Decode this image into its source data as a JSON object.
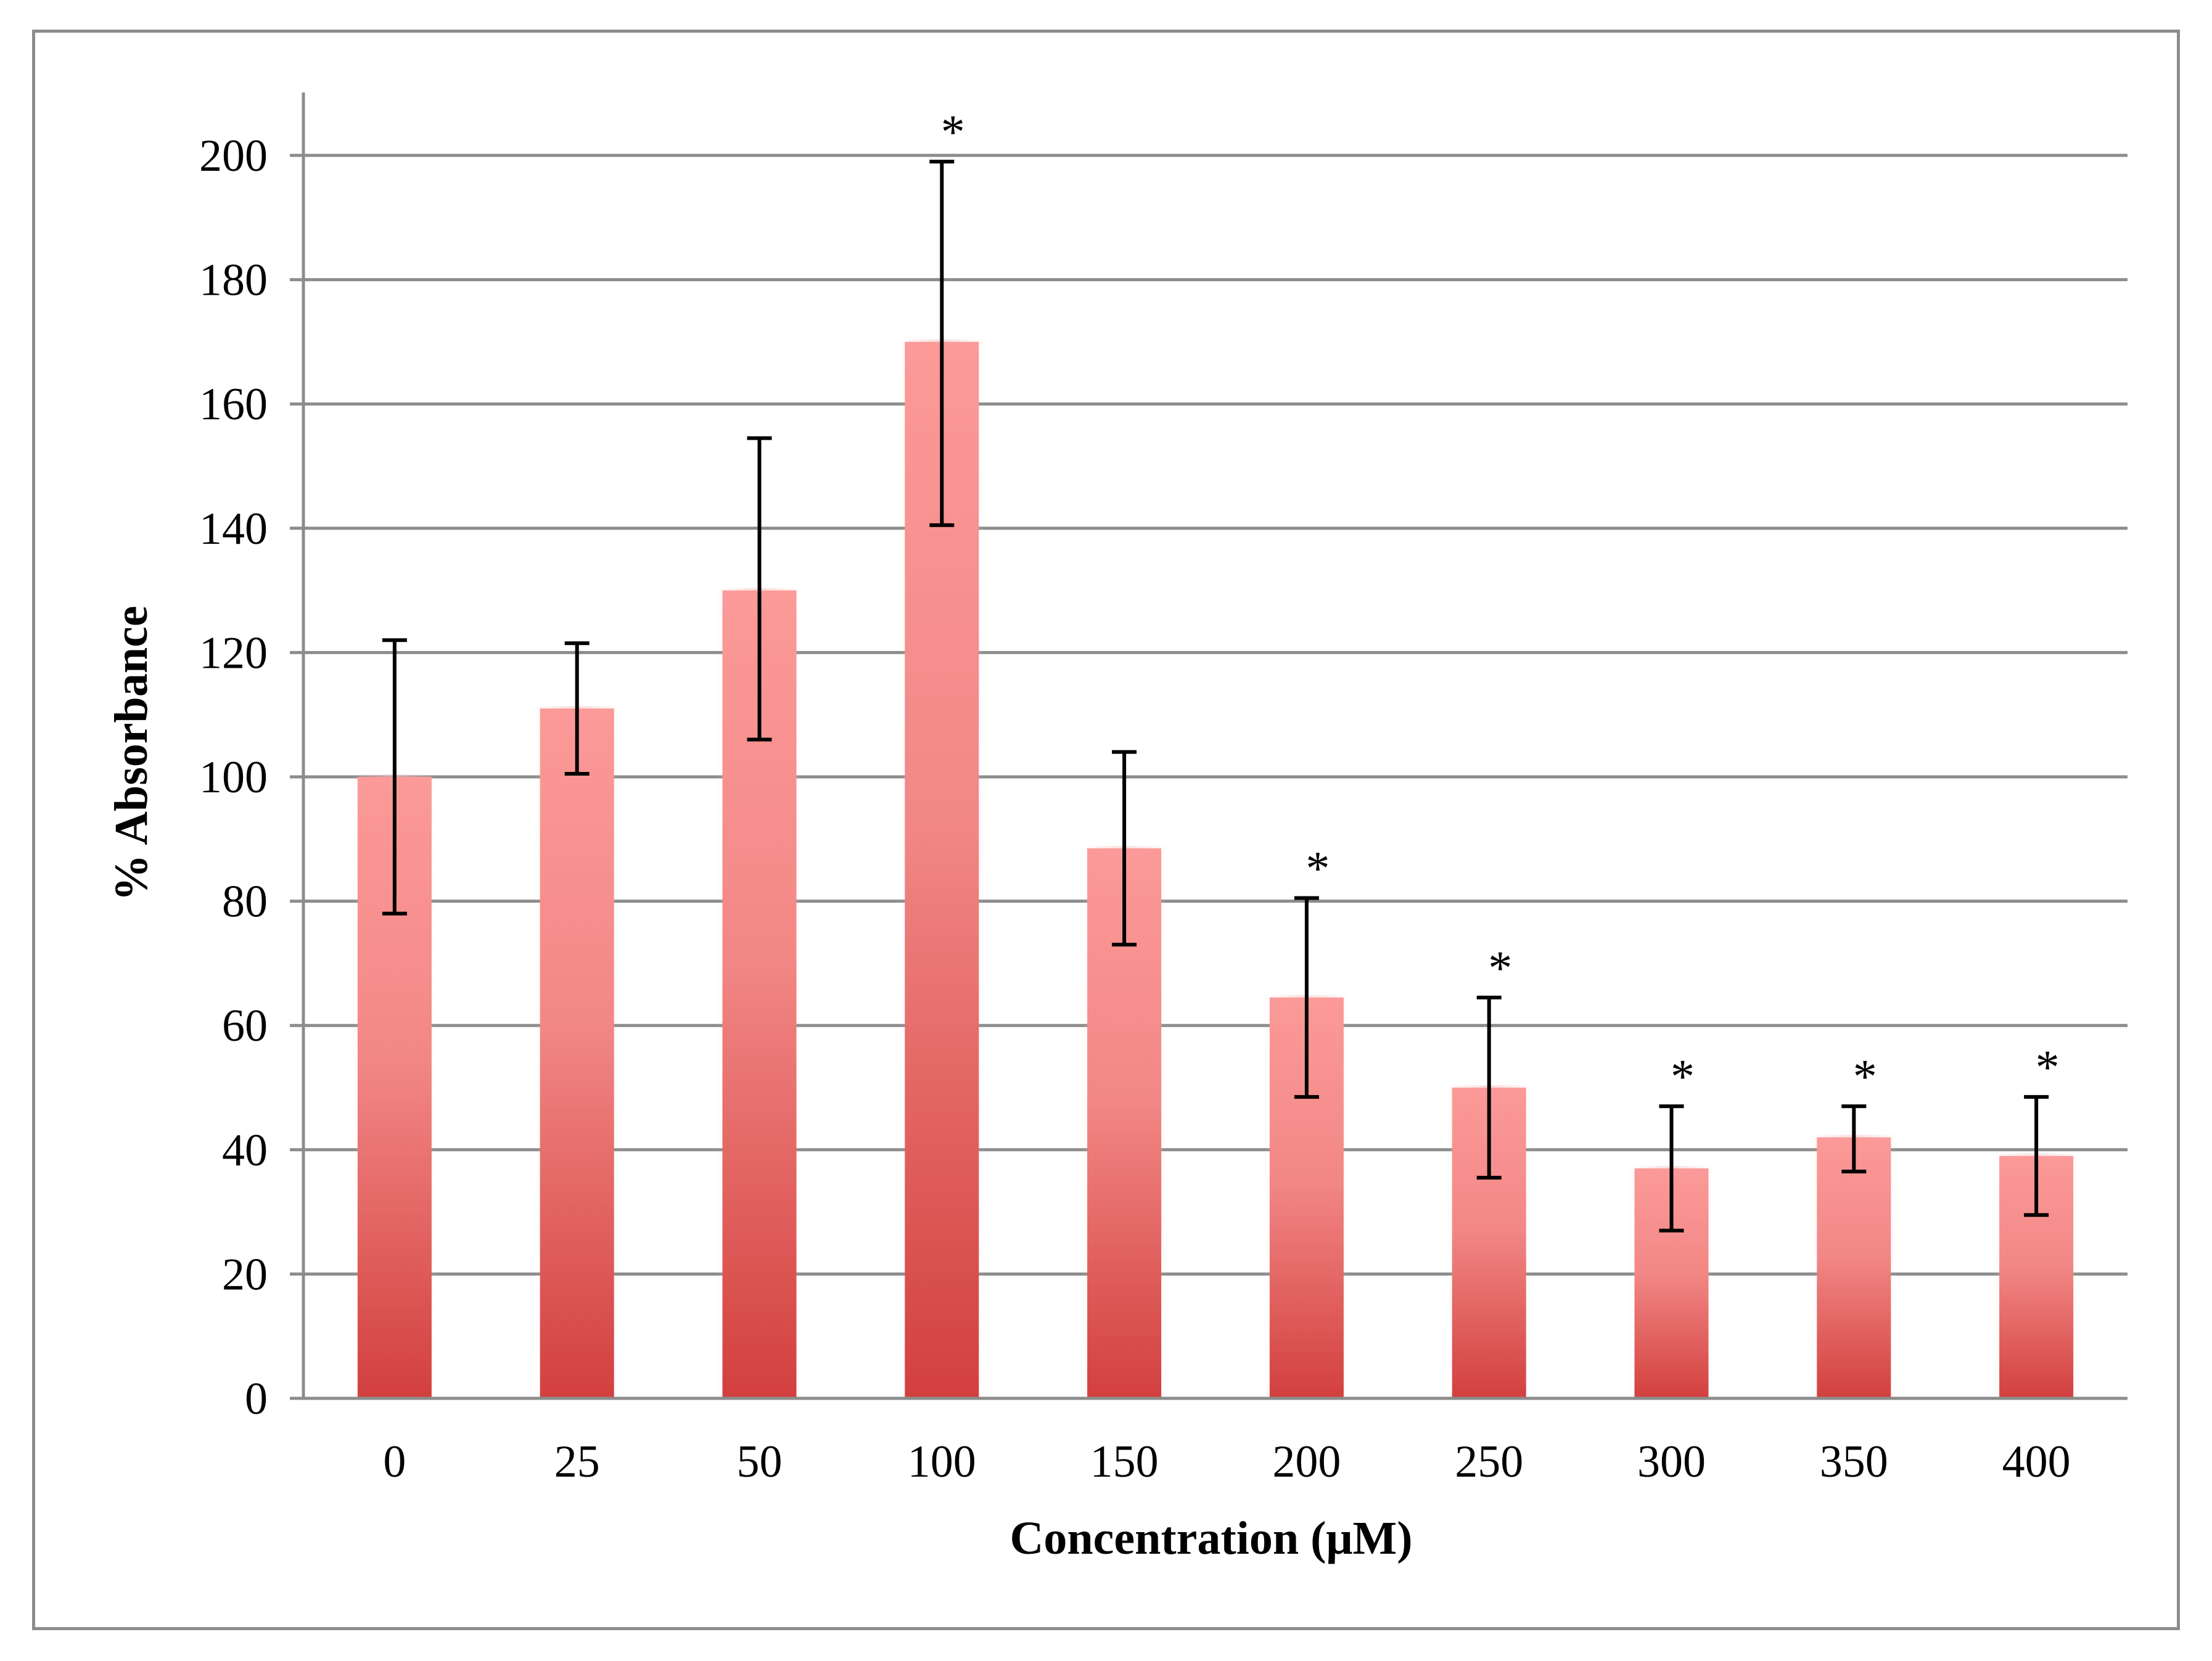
{
  "chart_data": {
    "type": "bar",
    "title": "",
    "xlabel": "Concentration (μM)",
    "ylabel": "% Absorbance",
    "ylim": [
      0,
      200
    ],
    "yticks": [
      0,
      20,
      40,
      60,
      80,
      100,
      120,
      140,
      160,
      180,
      200
    ],
    "grid": true,
    "categories": [
      "0",
      "25",
      "50",
      "100",
      "150",
      "200",
      "250",
      "300",
      "350",
      "400"
    ],
    "series": [
      {
        "name": "% Absorbance",
        "values": [
          100,
          111,
          130,
          170,
          88.5,
          64.5,
          50,
          37,
          42,
          39
        ],
        "error_low": [
          78,
          100.5,
          106,
          140.5,
          73,
          48.5,
          35.5,
          27,
          36.5,
          29.5
        ],
        "error_high": [
          122,
          121.5,
          154.5,
          199,
          104,
          80.5,
          64.5,
          47,
          47,
          48.5
        ],
        "significance": [
          "",
          "",
          "",
          "*",
          "",
          "*",
          "*",
          "*",
          "*",
          "*"
        ]
      }
    ],
    "colors": {
      "bar_top": "#fb9a98",
      "bar_bottom": "#d2403e",
      "grid": "#8c8c8c",
      "axis": "#8c8c8c",
      "error": "#000000"
    }
  }
}
